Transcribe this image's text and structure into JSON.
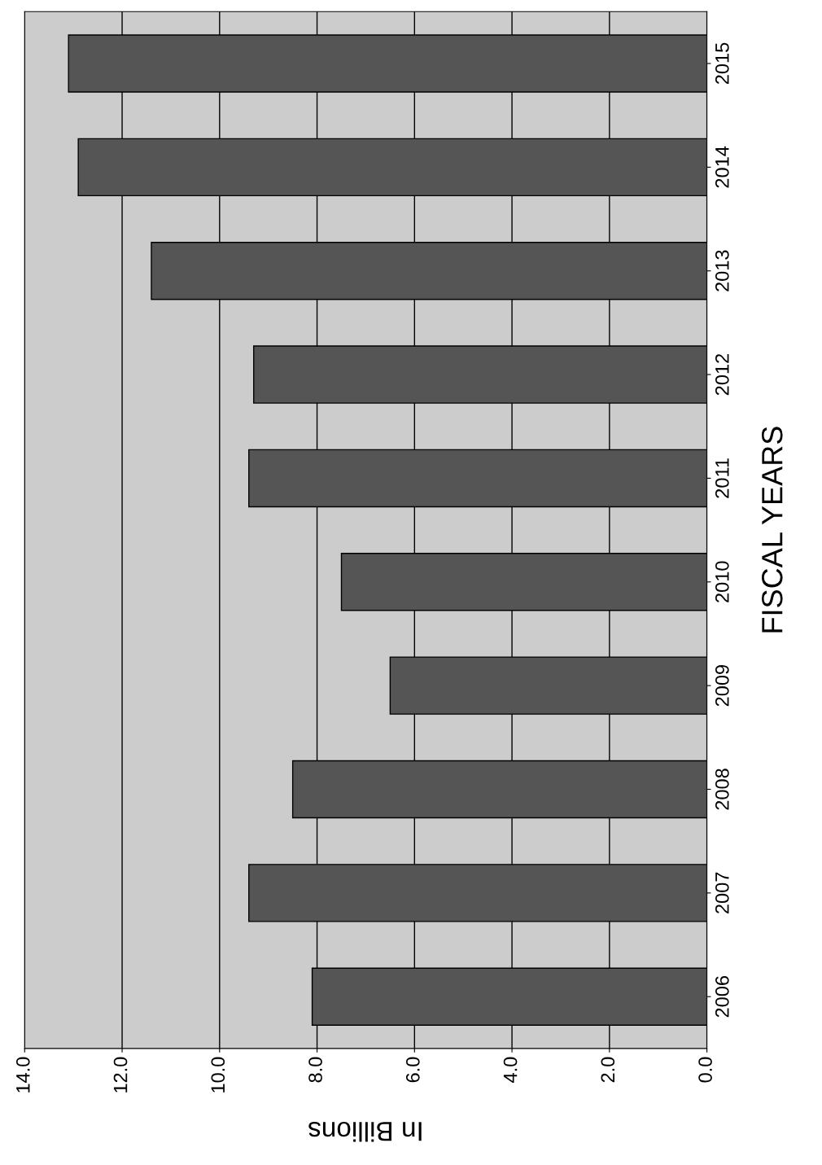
{
  "chart_data": {
    "type": "bar",
    "orientation": "horizontal",
    "xlabel": "In Billions",
    "ylabel": "FISCAL YEARS",
    "categories": [
      "2015",
      "2014",
      "2013",
      "2012",
      "2011",
      "2010",
      "2009",
      "2008",
      "2007",
      "2006"
    ],
    "values": [
      13.1,
      12.9,
      11.4,
      9.3,
      9.4,
      7.5,
      6.5,
      8.5,
      9.4,
      8.1
    ],
    "color": "#555555",
    "xlim": [
      14,
      0
    ],
    "xticks": [
      {
        "value": 14,
        "label": "14.0"
      },
      {
        "value": 12,
        "label": "12.0"
      },
      {
        "value": 10,
        "label": "10.0"
      },
      {
        "value": 8,
        "label": "8.0"
      },
      {
        "value": 6,
        "label": "6.0"
      },
      {
        "value": 4,
        "label": "4.0"
      },
      {
        "value": 2,
        "label": "2.0"
      },
      {
        "value": 0,
        "label": "0.0"
      }
    ],
    "grid": "x",
    "legend": false
  }
}
